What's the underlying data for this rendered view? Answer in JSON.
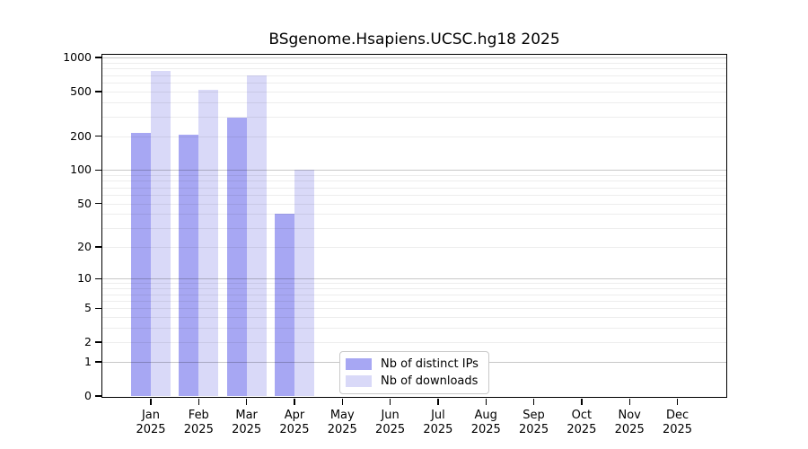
{
  "title": "BSgenome.Hsapiens.UCSC.hg18 2025",
  "legend": {
    "items": [
      {
        "label": "Nb of distinct IPs",
        "color": "#a7a7f3"
      },
      {
        "label": "Nb of downloads",
        "color": "#d9d9f8"
      }
    ]
  },
  "chart_data": {
    "type": "bar",
    "title": "BSgenome.Hsapiens.UCSC.hg18 2025",
    "categories": [
      "Jan",
      "Feb",
      "Mar",
      "Apr",
      "May",
      "Jun",
      "Jul",
      "Aug",
      "Sep",
      "Oct",
      "Nov",
      "Dec"
    ],
    "category_year": "2025",
    "series": [
      {
        "name": "Nb of distinct IPs",
        "color": "#a7a7f3",
        "values": [
          215,
          205,
          295,
          40,
          0,
          0,
          0,
          0,
          0,
          0,
          0,
          0
        ]
      },
      {
        "name": "Nb of downloads",
        "color": "#d9d9f8",
        "values": [
          760,
          520,
          690,
          101,
          0,
          0,
          0,
          0,
          0,
          0,
          0,
          0
        ]
      }
    ],
    "xlabel": "",
    "ylabel": "",
    "yscale": "log1p",
    "ylim": [
      0,
      1060
    ],
    "yticks": [
      0,
      1,
      2,
      5,
      10,
      20,
      50,
      100,
      200,
      500,
      1000
    ],
    "major_gridlines": [
      1,
      10,
      100,
      1000
    ],
    "minor_gridlines": [
      2,
      3,
      4,
      5,
      6,
      7,
      8,
      9,
      20,
      30,
      40,
      50,
      60,
      70,
      80,
      90,
      200,
      300,
      400,
      500,
      600,
      700,
      800,
      900
    ],
    "grid": true,
    "legend_position": "bottom-center",
    "background_color": "#ffffff",
    "axis_color": "#000000"
  }
}
